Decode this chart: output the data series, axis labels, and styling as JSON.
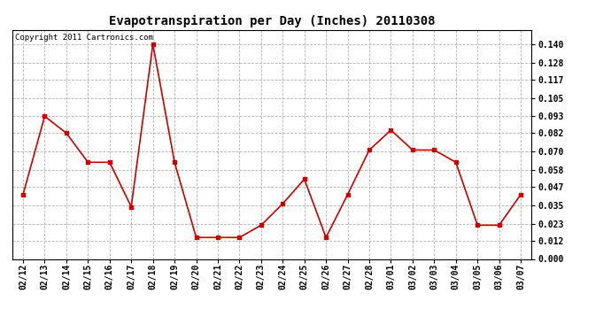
{
  "title": "Evapotranspiration per Day (Inches) 20110308",
  "copyright_text": "Copyright 2011 Cartronics.com",
  "line_color": "#cc0000",
  "marker_color": "#cc0000",
  "background_color": "#ffffff",
  "grid_color": "#b0b0b0",
  "dates": [
    "02/12",
    "02/13",
    "02/14",
    "02/15",
    "02/16",
    "02/17",
    "02/18",
    "02/19",
    "02/20",
    "02/21",
    "02/22",
    "02/23",
    "02/24",
    "02/25",
    "02/26",
    "02/27",
    "02/28",
    "03/01",
    "03/02",
    "03/03",
    "03/04",
    "03/05",
    "03/06",
    "03/07"
  ],
  "values": [
    0.042,
    0.093,
    0.082,
    0.063,
    0.063,
    0.034,
    0.14,
    0.063,
    0.014,
    0.014,
    0.014,
    0.022,
    0.036,
    0.052,
    0.014,
    0.042,
    0.071,
    0.084,
    0.071,
    0.071,
    0.063,
    0.022,
    0.022,
    0.042
  ],
  "ylim": [
    0.0,
    0.1493
  ],
  "yticks": [
    0.0,
    0.012,
    0.023,
    0.035,
    0.047,
    0.058,
    0.07,
    0.082,
    0.093,
    0.105,
    0.117,
    0.128,
    0.14
  ],
  "title_fontsize": 10,
  "tick_fontsize": 7,
  "copyright_fontsize": 6.5
}
